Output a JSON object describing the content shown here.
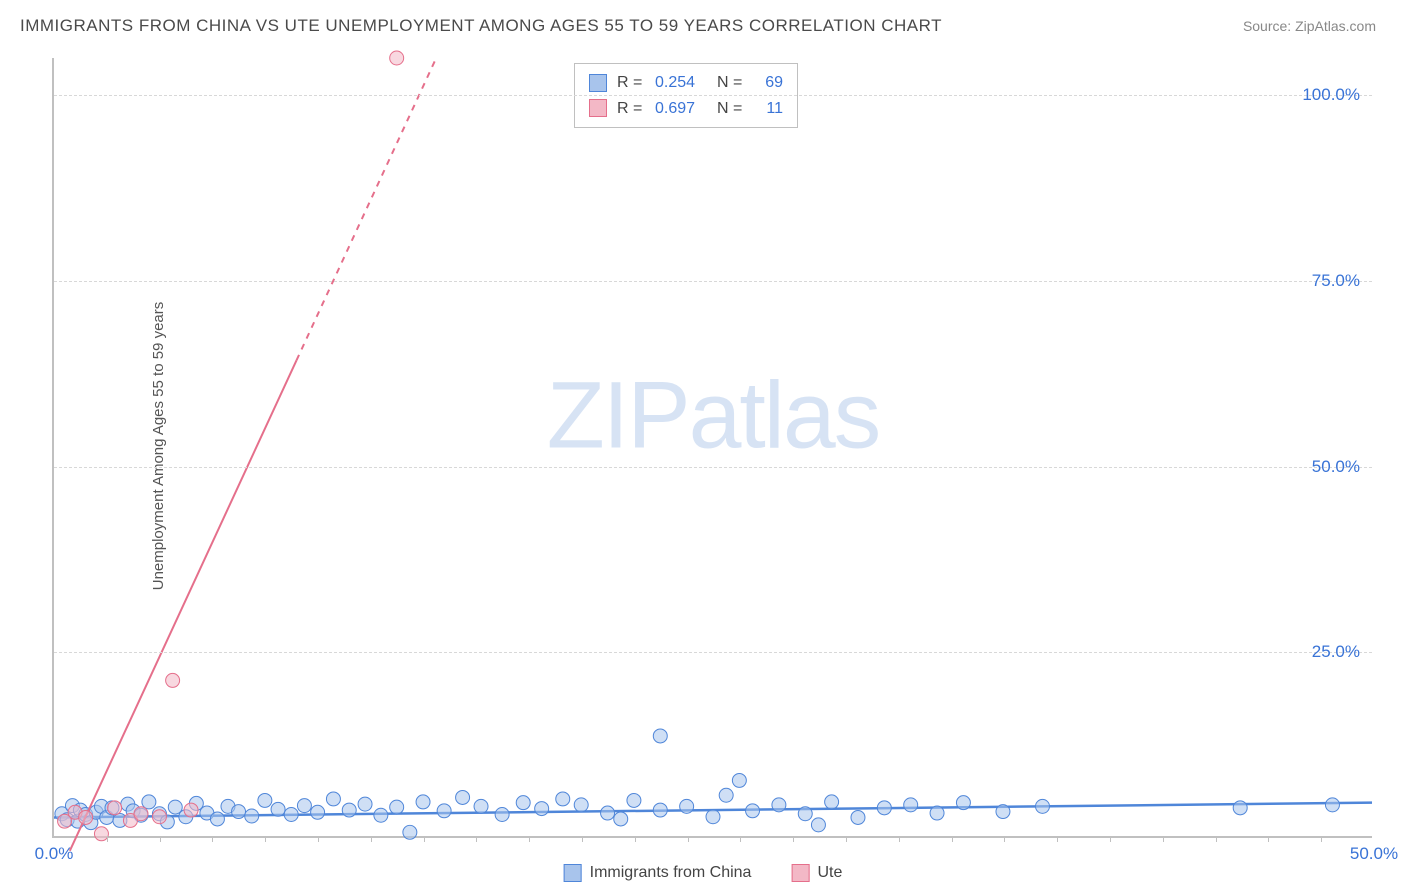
{
  "chart": {
    "type": "scatter",
    "title": "IMMIGRANTS FROM CHINA VS UTE UNEMPLOYMENT AMONG AGES 55 TO 59 YEARS CORRELATION CHART",
    "source_label": "Source:",
    "source_site": "ZipAtlas.com",
    "ylabel": "Unemployment Among Ages 55 to 59 years",
    "xlabel": "",
    "watermark": "ZIPatlas",
    "xlim": [
      0,
      50
    ],
    "ylim": [
      0,
      105
    ],
    "xtick_values": [
      0,
      50
    ],
    "xtick_labels": [
      "0.0%",
      "50.0%"
    ],
    "ytick_values": [
      25,
      50,
      75,
      100
    ],
    "ytick_labels": [
      "25.0%",
      "50.0%",
      "75.0%",
      "100.0%"
    ],
    "grid_color": "#d8d8d8",
    "axis_color": "#c0c0c0",
    "tick_label_color": "#3973d6",
    "marker_radius": 7,
    "marker_opacity": 0.55,
    "series": [
      {
        "name": "Immigrants from China",
        "color_stroke": "#4f86d9",
        "color_fill": "#a8c4ec",
        "R": "0.254",
        "N": "69",
        "trend_line": {
          "x1": 0,
          "y1": 2.5,
          "x2": 50,
          "y2": 4.5,
          "width": 2.5,
          "dash_after_x": null
        },
        "points": [
          [
            0.3,
            3.0
          ],
          [
            0.5,
            2.2
          ],
          [
            0.7,
            4.1
          ],
          [
            0.9,
            2.0
          ],
          [
            1.0,
            3.5
          ],
          [
            1.2,
            2.9
          ],
          [
            1.4,
            1.8
          ],
          [
            1.6,
            3.2
          ],
          [
            1.8,
            4.0
          ],
          [
            2.0,
            2.5
          ],
          [
            2.2,
            3.8
          ],
          [
            2.5,
            2.1
          ],
          [
            2.8,
            4.3
          ],
          [
            3.0,
            3.4
          ],
          [
            3.3,
            2.8
          ],
          [
            3.6,
            4.6
          ],
          [
            4.0,
            3.0
          ],
          [
            4.3,
            1.9
          ],
          [
            4.6,
            3.9
          ],
          [
            5.0,
            2.6
          ],
          [
            5.4,
            4.4
          ],
          [
            5.8,
            3.1
          ],
          [
            6.2,
            2.3
          ],
          [
            6.6,
            4.0
          ],
          [
            7.0,
            3.3
          ],
          [
            7.5,
            2.7
          ],
          [
            8.0,
            4.8
          ],
          [
            8.5,
            3.6
          ],
          [
            9.0,
            2.9
          ],
          [
            9.5,
            4.1
          ],
          [
            10.0,
            3.2
          ],
          [
            10.6,
            5.0
          ],
          [
            11.2,
            3.5
          ],
          [
            11.8,
            4.3
          ],
          [
            12.4,
            2.8
          ],
          [
            13.0,
            3.9
          ],
          [
            13.5,
            0.5
          ],
          [
            14.0,
            4.6
          ],
          [
            14.8,
            3.4
          ],
          [
            15.5,
            5.2
          ],
          [
            16.2,
            4.0
          ],
          [
            17.0,
            2.9
          ],
          [
            17.8,
            4.5
          ],
          [
            18.5,
            3.7
          ],
          [
            19.3,
            5.0
          ],
          [
            20.0,
            4.2
          ],
          [
            21.0,
            3.1
          ],
          [
            21.5,
            2.3
          ],
          [
            22.0,
            4.8
          ],
          [
            23.0,
            3.5
          ],
          [
            23.0,
            13.5
          ],
          [
            24.0,
            4.0
          ],
          [
            25.0,
            2.6
          ],
          [
            25.5,
            5.5
          ],
          [
            26.0,
            7.5
          ],
          [
            26.5,
            3.4
          ],
          [
            27.5,
            4.2
          ],
          [
            28.5,
            3.0
          ],
          [
            29.0,
            1.5
          ],
          [
            29.5,
            4.6
          ],
          [
            30.5,
            2.5
          ],
          [
            31.5,
            3.8
          ],
          [
            32.5,
            4.2
          ],
          [
            33.5,
            3.1
          ],
          [
            34.5,
            4.5
          ],
          [
            36.0,
            3.3
          ],
          [
            37.5,
            4.0
          ],
          [
            45.0,
            3.8
          ],
          [
            48.5,
            4.2
          ]
        ]
      },
      {
        "name": "Ute",
        "color_stroke": "#e56f8b",
        "color_fill": "#f3b8c6",
        "R": "0.697",
        "N": "11",
        "trend_line": {
          "x1": 0.6,
          "y1": -2,
          "x2": 14.5,
          "y2": 105,
          "width": 2,
          "dash_after_x": 9.2
        },
        "points": [
          [
            0.4,
            2.0
          ],
          [
            0.8,
            3.2
          ],
          [
            1.2,
            2.5
          ],
          [
            1.8,
            0.3
          ],
          [
            2.3,
            3.8
          ],
          [
            2.9,
            2.1
          ],
          [
            3.3,
            3.0
          ],
          [
            4.0,
            2.6
          ],
          [
            4.5,
            21.0
          ],
          [
            5.2,
            3.5
          ],
          [
            13.0,
            105
          ]
        ]
      }
    ],
    "legend_bottom": [
      {
        "label": "Immigrants from China",
        "fill": "#a8c4ec",
        "stroke": "#4f86d9"
      },
      {
        "label": "Ute",
        "fill": "#f3b8c6",
        "stroke": "#e56f8b"
      }
    ]
  }
}
